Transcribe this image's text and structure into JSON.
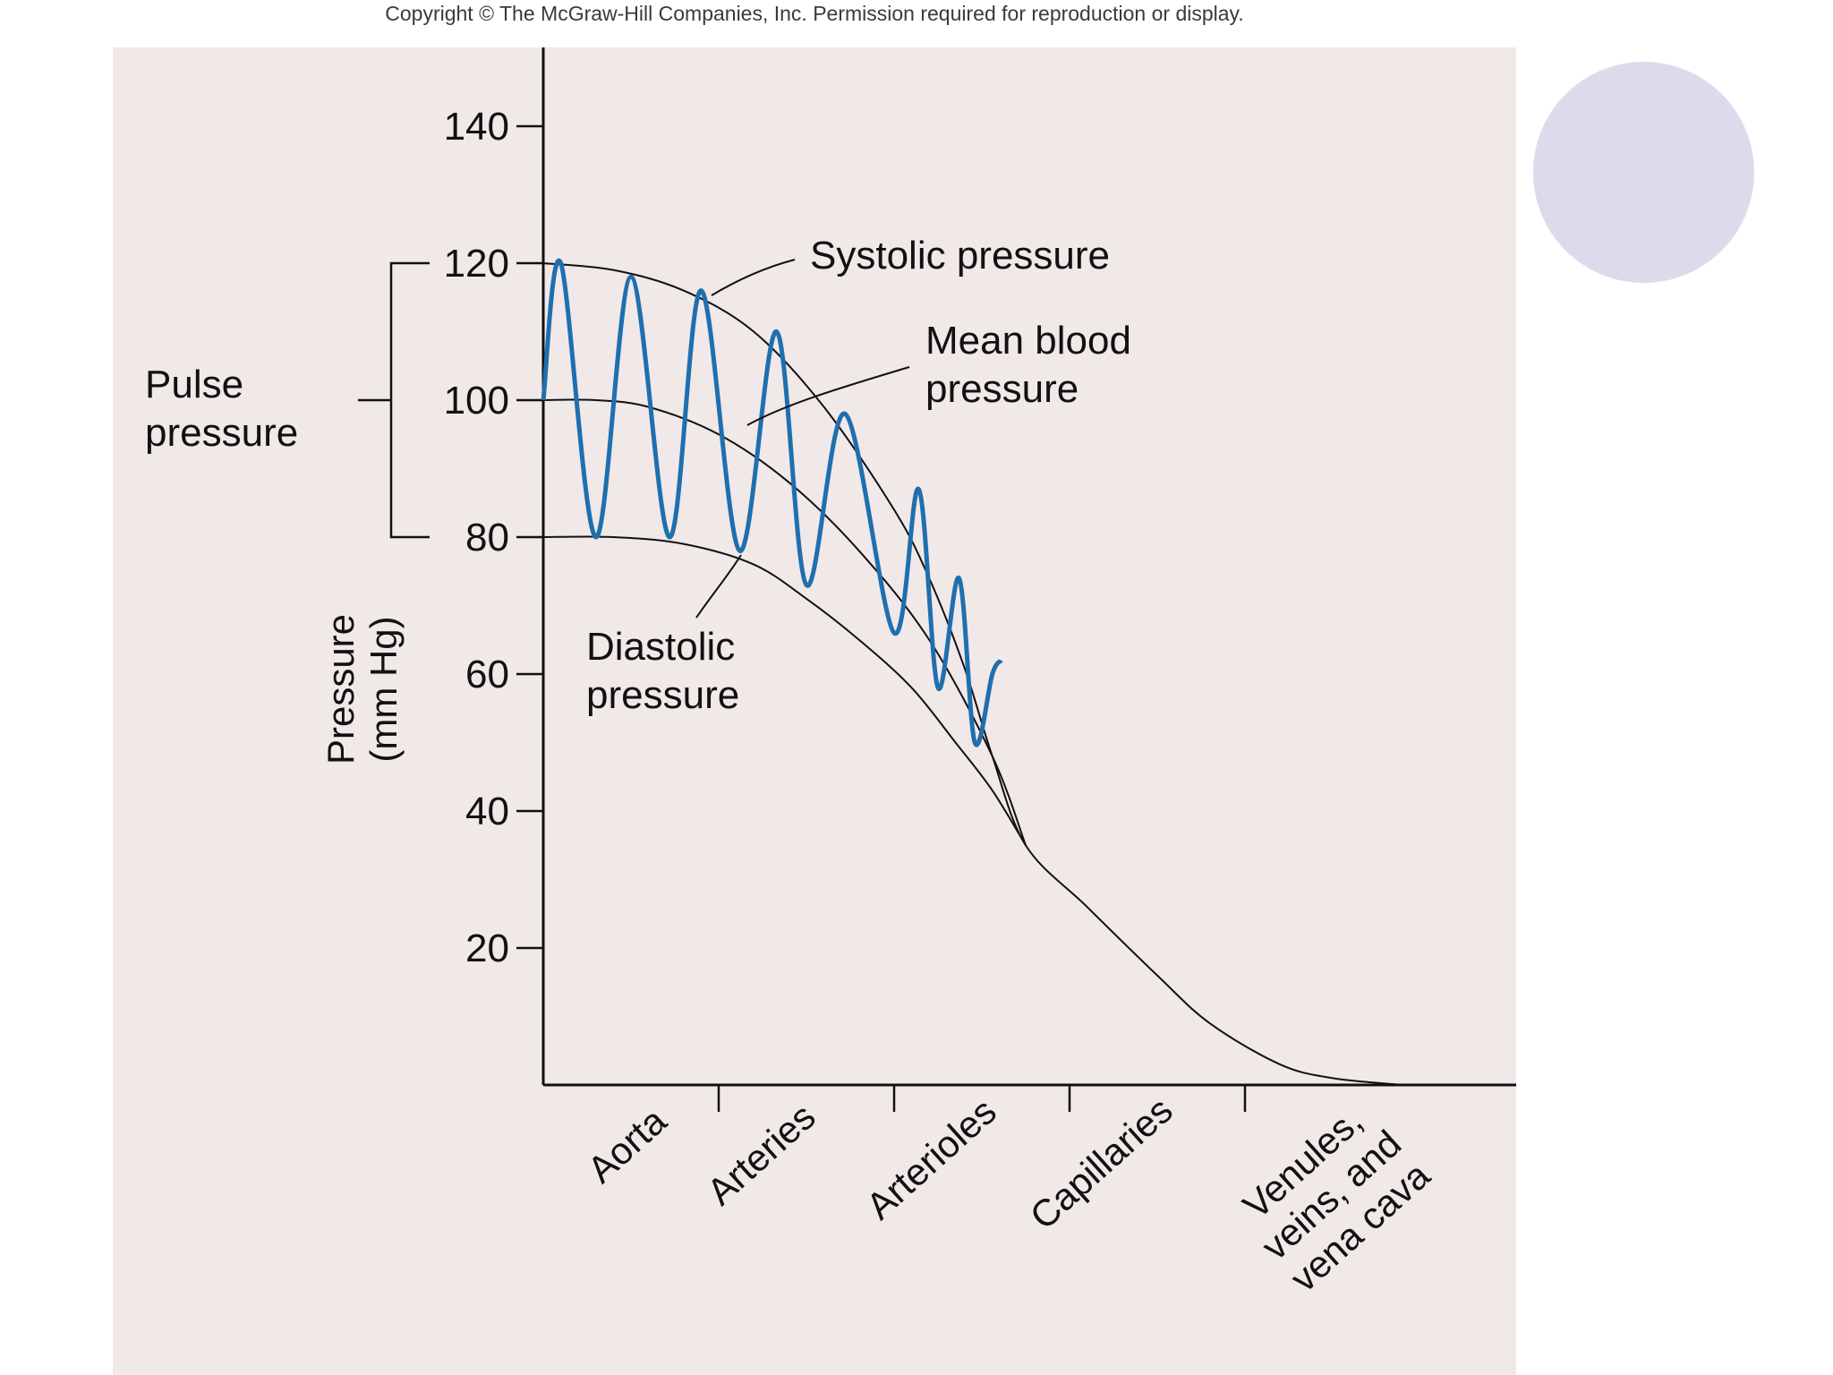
{
  "header": {
    "copyright": "Copyright © The McGraw-Hill Companies, Inc. Permission required for reproduction or display."
  },
  "colors": {
    "panel": "#f1e8e8",
    "wave": "#1f6fae",
    "curve": "#111111",
    "circle": "#dcdbeb"
  },
  "chart_data": {
    "type": "line",
    "ylabel": [
      "Pressure",
      "(mm Hg)"
    ],
    "ylim": [
      0,
      150
    ],
    "yticks": [
      20,
      40,
      60,
      80,
      100,
      120,
      140
    ],
    "categories": [
      "Aorta",
      "Arteries",
      "Arterioles",
      "Capillaries",
      [
        "Venules,",
        "veins, and",
        "vena cava"
      ]
    ],
    "series": [
      {
        "name": "Systolic pressure",
        "x": [
          0,
          0.4,
          0.8,
          1.2,
          1.6,
          2.0,
          2.2,
          2.4,
          2.56,
          2.75,
          3.1,
          3.5,
          3.8,
          4.2,
          4.5,
          4.9
        ],
        "values": [
          120,
          119,
          116,
          110,
          99,
          84,
          74,
          61,
          48,
          35,
          26,
          16,
          9,
          3,
          1,
          0
        ]
      },
      {
        "name": "Mean blood pressure",
        "x": [
          0,
          0.3,
          0.6,
          1.0,
          1.4,
          1.8,
          2.2,
          2.56,
          2.75
        ],
        "values": [
          100,
          100,
          99,
          95,
          88,
          78,
          65,
          48,
          35
        ]
      },
      {
        "name": "Diastolic pressure",
        "x": [
          0,
          0.4,
          0.8,
          1.2,
          1.5,
          1.8,
          2.1,
          2.35,
          2.56,
          2.75
        ],
        "values": [
          80,
          80,
          79,
          76,
          71,
          65,
          58,
          50,
          43,
          35
        ]
      }
    ],
    "pulse_wave": {
      "x": [
        0,
        0.1,
        0.3,
        0.5,
        0.72,
        0.9,
        1.12,
        1.33,
        1.5,
        1.72,
        2.0,
        2.14,
        2.25,
        2.37,
        2.46,
        2.56,
        2.61
      ],
      "values": [
        100,
        120,
        80,
        118,
        80,
        116,
        78,
        110,
        73,
        98,
        66,
        87,
        58,
        74,
        50,
        60,
        62
      ]
    },
    "annotations": {
      "systolic": [
        "Systolic pressure"
      ],
      "mean": [
        "Mean blood",
        "pressure"
      ],
      "diastolic": [
        "Diastolic",
        "pressure"
      ],
      "pulse": [
        "Pulse",
        "pressure"
      ]
    }
  }
}
